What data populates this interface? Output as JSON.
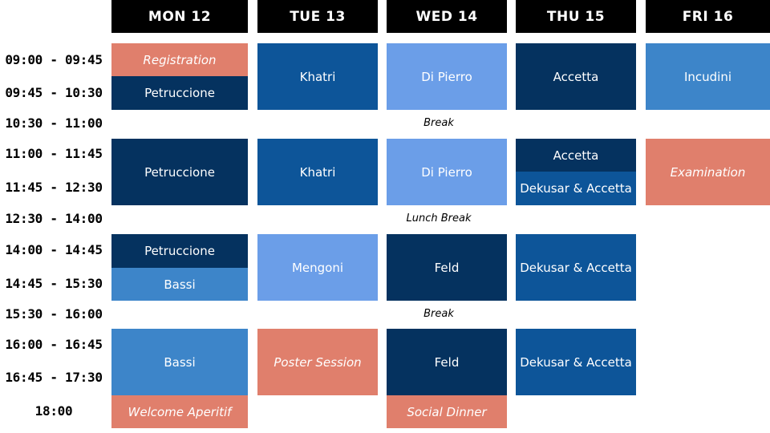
{
  "days": [
    "MON 12",
    "TUE 13",
    "WED 14",
    "THU 15",
    "FRI 16"
  ],
  "times": [
    "09:00 - 09:45",
    "09:45 - 10:30",
    "10:30 - 11:00",
    "11:00 - 11:45",
    "11:45 - 12:30",
    "12:30 - 14:00",
    "14:00 - 14:45",
    "14:45 - 15:30",
    "15:30 - 16:00",
    "16:00 - 16:45",
    "16:45 - 17:30",
    "18:00"
  ],
  "breaks": [
    "Break",
    "Lunch Break",
    "Break"
  ],
  "mon": [
    "Registration",
    "Petruccione",
    "Petruccione",
    "Petruccione",
    "Bassi",
    "Bassi",
    "Welcome Aperitif"
  ],
  "tue": [
    "Khatri",
    "Khatri",
    "Mengoni",
    "Poster Session"
  ],
  "wed": [
    "Di Pierro",
    "Di Pierro",
    "Feld",
    "Feld",
    "Social Dinner"
  ],
  "thu": [
    "Accetta",
    "Accetta",
    "Dekusar & Accetta",
    "Dekusar & Accetta",
    "Dekusar & Accetta"
  ],
  "fri": [
    "Incudini",
    "Examination"
  ],
  "colors": {
    "header": "#000000",
    "salmon": "#e07f6c",
    "navy": "#05325f",
    "mid_blue": "#0d5599",
    "sky_blue": "#3d85c9",
    "light_blue": "#6b9ee8"
  }
}
